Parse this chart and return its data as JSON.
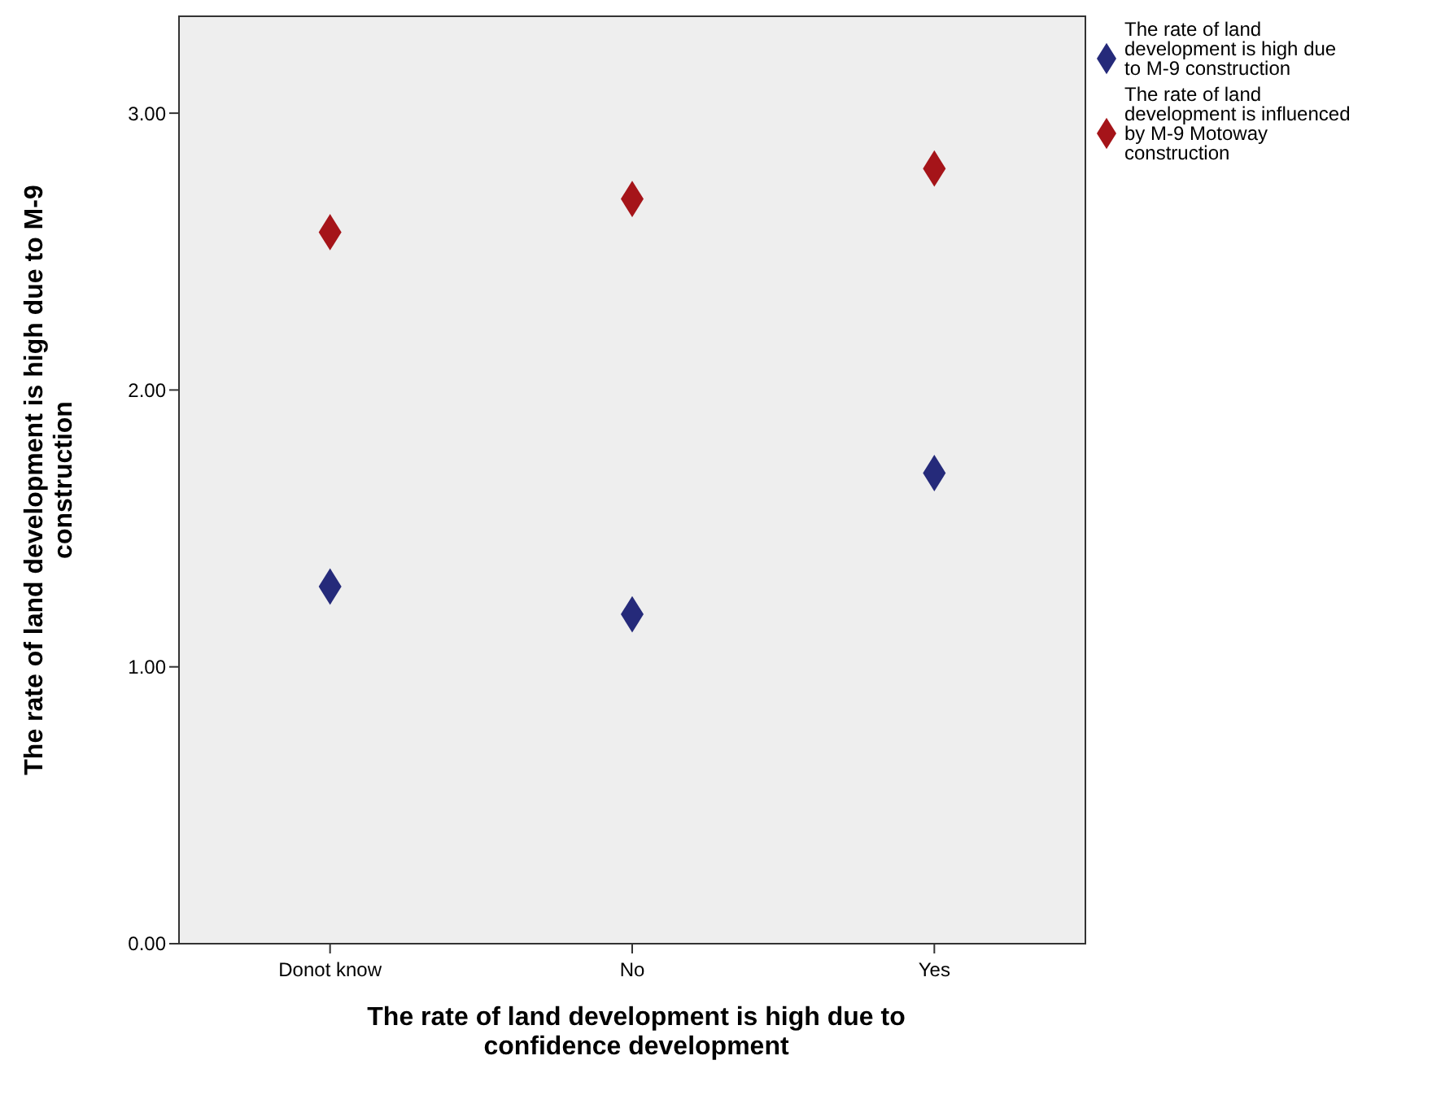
{
  "chart_data": {
    "type": "scatter",
    "xlabel": "The rate of land development is high due to confidence development",
    "ylabel": "The rate of land development is high due to M-9 construction",
    "categories": [
      "Donot know",
      "No",
      "Yes"
    ],
    "series": [
      {
        "name": "The rate of land development is high due to M-9 construction",
        "color": "#252a7a",
        "values": [
          1.29,
          1.19,
          1.7
        ]
      },
      {
        "name": "The rate of land development is influenced by M-9 Motoway construction",
        "color": "#a51419",
        "values": [
          2.57,
          2.69,
          2.8
        ]
      }
    ],
    "ylim": [
      0,
      3.35
    ],
    "yticks": [
      {
        "value": 0,
        "label": "0.00"
      },
      {
        "value": 1,
        "label": "1.00"
      },
      {
        "value": 2,
        "label": "2.00"
      },
      {
        "value": 3,
        "label": "3.00"
      }
    ],
    "marker": "diamond",
    "legend": "top right",
    "grid": false
  }
}
